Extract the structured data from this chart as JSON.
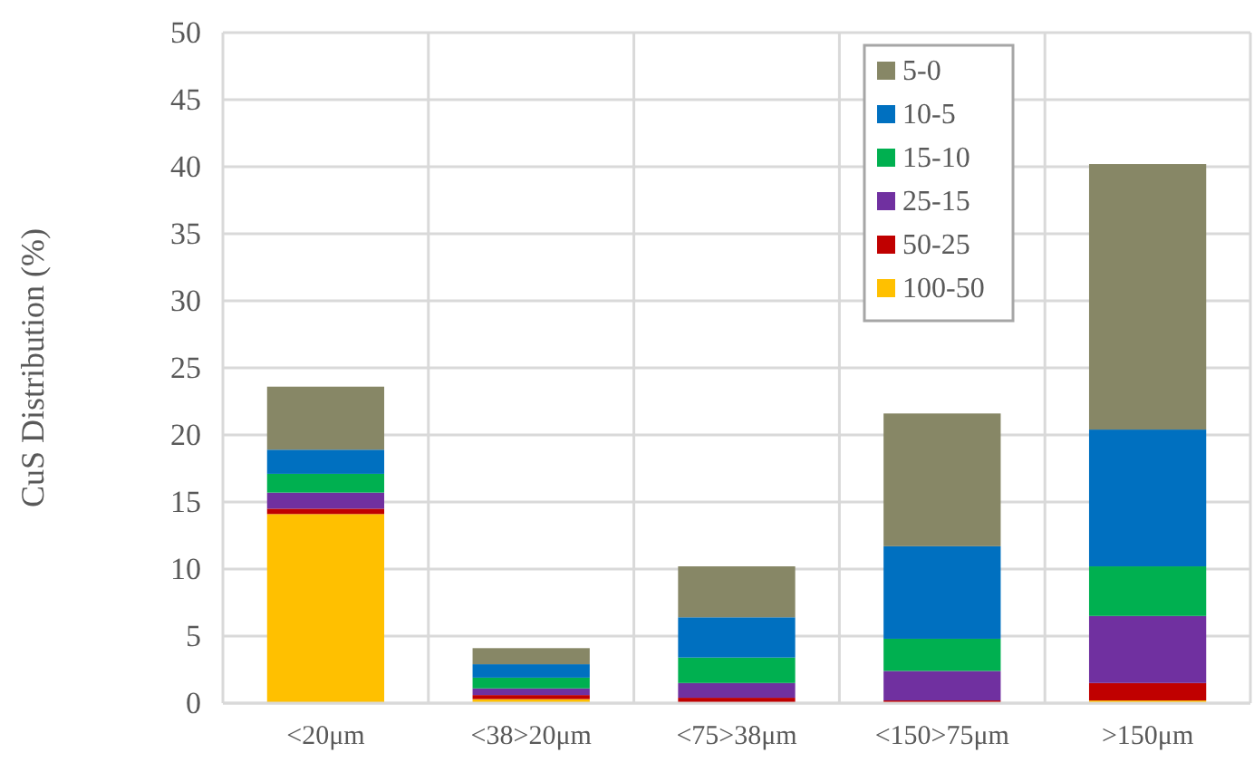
{
  "chart_data": {
    "type": "bar",
    "stacked": true,
    "ylabel": "CuS Distribution (%)",
    "categories": [
      "<20μm",
      "<38>20μm",
      "<75>38μm",
      "<150>75μm",
      ">150μm"
    ],
    "series": [
      {
        "name": "100-50",
        "color": "#ffc000",
        "values": [
          14.1,
          0.3,
          null,
          null,
          0.2
        ]
      },
      {
        "name": "50-25",
        "color": "#c00000",
        "values": [
          0.4,
          0.3,
          0.4,
          0.2,
          1.3
        ]
      },
      {
        "name": "25-15",
        "color": "#7030a0",
        "values": [
          1.2,
          0.5,
          1.1,
          2.2,
          5.0
        ]
      },
      {
        "name": "15-10",
        "color": "#00b050",
        "values": [
          1.4,
          0.8,
          1.9,
          2.4,
          3.7
        ]
      },
      {
        "name": "10-5",
        "color": "#0070c0",
        "values": [
          1.8,
          1.0,
          3.0,
          6.9,
          10.2
        ]
      },
      {
        "name": "5-0",
        "color": "#878766",
        "values": [
          4.7,
          1.2,
          3.8,
          9.9,
          19.8
        ]
      }
    ],
    "ylim": [
      0,
      50
    ],
    "yticks": [
      0,
      5,
      10,
      15,
      20,
      25,
      30,
      35,
      40,
      45,
      50
    ],
    "grid": true,
    "legend": "top right"
  }
}
